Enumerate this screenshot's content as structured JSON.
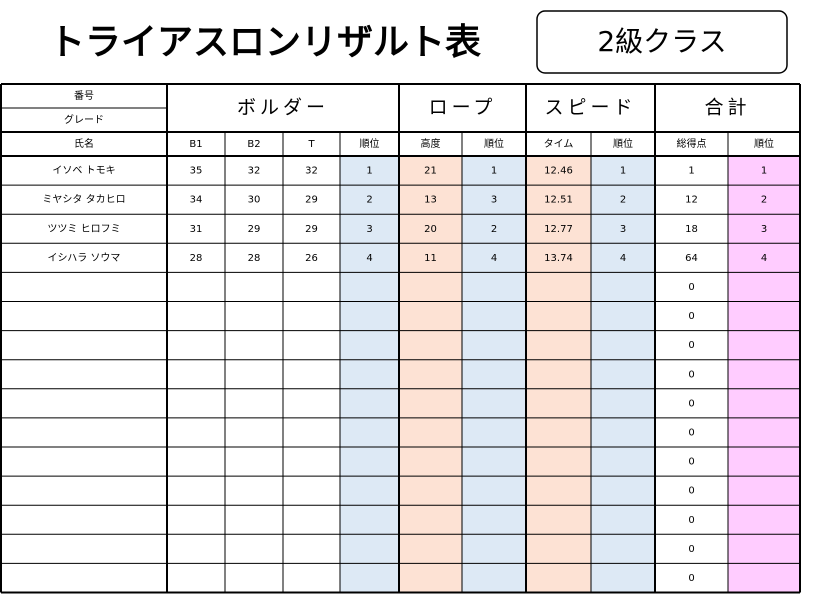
{
  "header": {
    "title": "トライアスロンリザルト表",
    "class_label": "2級クラス"
  },
  "table": {
    "top_left": [
      "番号",
      "グレード"
    ],
    "groups": [
      "ボルダー",
      "ロープ",
      "スピード",
      "合計"
    ],
    "columns": [
      "氏名",
      "B1",
      "B2",
      "T",
      "順位",
      "高度",
      "順位",
      "タイム",
      "順位",
      "総得点",
      "順位"
    ],
    "rows": [
      [
        "イソベ トモキ",
        35,
        32,
        32,
        1,
        21,
        1,
        12.46,
        1,
        1,
        1
      ],
      [
        "ミヤシタ タカヒロ",
        34,
        30,
        29,
        2,
        13,
        3,
        12.51,
        2,
        12,
        2
      ],
      [
        "ツツミ ヒロフミ",
        31,
        29,
        29,
        3,
        20,
        2,
        12.77,
        3,
        18,
        3
      ],
      [
        "イシハラ ソウマ",
        28,
        28,
        26,
        4,
        11,
        4,
        13.74,
        4,
        64,
        4
      ],
      [
        null,
        null,
        null,
        null,
        null,
        null,
        null,
        null,
        null,
        0,
        null
      ],
      [
        null,
        null,
        null,
        null,
        null,
        null,
        null,
        null,
        null,
        0,
        null
      ],
      [
        null,
        null,
        null,
        null,
        null,
        null,
        null,
        null,
        null,
        0,
        null
      ],
      [
        null,
        null,
        null,
        null,
        null,
        null,
        null,
        null,
        null,
        0,
        null
      ],
      [
        null,
        null,
        null,
        null,
        null,
        null,
        null,
        null,
        null,
        0,
        null
      ],
      [
        null,
        null,
        null,
        null,
        null,
        null,
        null,
        null,
        null,
        0,
        null
      ],
      [
        null,
        null,
        null,
        null,
        null,
        null,
        null,
        null,
        null,
        0,
        null
      ],
      [
        null,
        null,
        null,
        null,
        null,
        null,
        null,
        null,
        null,
        0,
        null
      ],
      [
        null,
        null,
        null,
        null,
        null,
        null,
        null,
        null,
        null,
        0,
        null
      ],
      [
        null,
        null,
        null,
        null,
        null,
        null,
        null,
        null,
        null,
        0,
        null
      ],
      [
        null,
        null,
        null,
        null,
        null,
        null,
        null,
        null,
        null,
        0,
        null
      ]
    ]
  }
}
